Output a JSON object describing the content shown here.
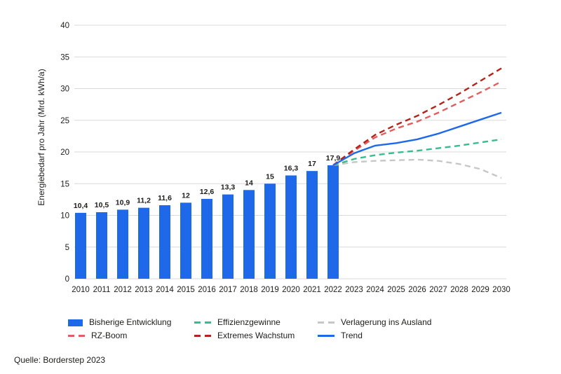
{
  "chart_data": {
    "type": "combo_bar_line",
    "title": "",
    "xlabel": "",
    "ylabel": "Energiebedarf pro Jahr (Mrd. kWh/a)",
    "ylim": [
      0,
      40
    ],
    "yticks": [
      0,
      5,
      10,
      15,
      20,
      25,
      30,
      35,
      40
    ],
    "x_years": [
      2010,
      2011,
      2012,
      2013,
      2014,
      2015,
      2016,
      2017,
      2018,
      2019,
      2020,
      2021,
      2022,
      2023,
      2024,
      2025,
      2026,
      2027,
      2028,
      2029,
      2030
    ],
    "grid": true,
    "gridline_color": "#d9d9d9",
    "bars": {
      "name": "Bisherige Entwicklung",
      "color": "#1e69e9",
      "years": [
        2010,
        2011,
        2012,
        2013,
        2014,
        2015,
        2016,
        2017,
        2018,
        2019,
        2020,
        2021,
        2022
      ],
      "values": [
        10.4,
        10.5,
        10.9,
        11.2,
        11.6,
        12,
        12.6,
        13.3,
        14,
        15,
        16.3,
        17,
        17.9
      ],
      "value_labels": [
        "10,4",
        "10,5",
        "10,9",
        "11,2",
        "11,6",
        "12",
        "12,6",
        "13,3",
        "14",
        "15",
        "16,3",
        "17",
        "17,9"
      ]
    },
    "lines": [
      {
        "name": "Verlagerung ins Ausland",
        "color": "#c7c7c7",
        "dashed": true,
        "years": [
          2022,
          2023,
          2024,
          2025,
          2026,
          2027,
          2028,
          2029,
          2030
        ],
        "values": [
          17.9,
          18.4,
          18.6,
          18.7,
          18.8,
          18.6,
          18.1,
          17.3,
          15.9
        ]
      },
      {
        "name": "Effizienzgewinne",
        "color": "#35bd8d",
        "dashed": true,
        "years": [
          2022,
          2023,
          2024,
          2025,
          2026,
          2027,
          2028,
          2029,
          2030
        ],
        "values": [
          17.9,
          18.9,
          19.5,
          19.9,
          20.2,
          20.6,
          21.0,
          21.5,
          22.0
        ]
      },
      {
        "name": "RZ-Boom",
        "color": "#e25d5d",
        "dashed": true,
        "years": [
          2022,
          2023,
          2024,
          2025,
          2026,
          2027,
          2028,
          2029,
          2030
        ],
        "values": [
          17.9,
          20.2,
          22.3,
          23.7,
          24.8,
          26.2,
          27.8,
          29.4,
          31.1
        ]
      },
      {
        "name": "Extremes Wachstum",
        "color": "#b2231b",
        "dashed": true,
        "years": [
          2022,
          2023,
          2024,
          2025,
          2026,
          2027,
          2028,
          2029,
          2030
        ],
        "values": [
          17.9,
          20.4,
          22.7,
          24.3,
          25.7,
          27.4,
          29.2,
          31.2,
          33.2
        ]
      },
      {
        "name": "Trend",
        "color": "#1e69e9",
        "dashed": false,
        "years": [
          2022,
          2023,
          2024,
          2025,
          2026,
          2027,
          2028,
          2029,
          2030
        ],
        "values": [
          17.9,
          19.8,
          21.0,
          21.4,
          22.0,
          22.9,
          24.0,
          25.1,
          26.2
        ]
      }
    ],
    "legend_position": "bottom"
  },
  "legend": {
    "items": [
      {
        "label": "Bisherige Entwicklung",
        "color": "#1e69e9",
        "style": "bar"
      },
      {
        "label": "RZ-Boom",
        "color": "#e25d5d",
        "style": "dashed"
      },
      {
        "label": "Effizienzgewinne",
        "color": "#35bd8d",
        "style": "dashed"
      },
      {
        "label": "Extremes Wachstum",
        "color": "#b2231b",
        "style": "dashed"
      },
      {
        "label": "Verlagerung ins Ausland",
        "color": "#c7c7c7",
        "style": "dashed"
      },
      {
        "label": "Trend",
        "color": "#1e69e9",
        "style": "solid"
      }
    ]
  },
  "footer": {
    "source": "Quelle: Borderstep 2023"
  }
}
